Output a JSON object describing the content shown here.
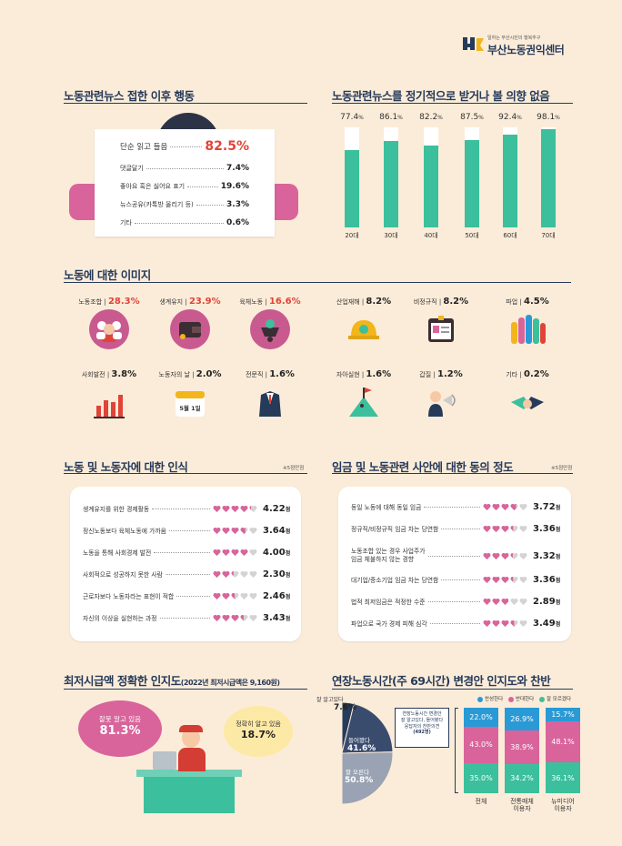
{
  "logo": {
    "tagline": "일하는 부산시민의 행복추구",
    "name": "부산노동권익센터",
    "mark": "부"
  },
  "s1": {
    "title": "노동관련뉴스 접한 이후 행동",
    "rows": [
      {
        "label": "단순 읽고 들음",
        "value": "82.5%"
      },
      {
        "label": "댓글달기",
        "value": "7.4%"
      },
      {
        "label": "좋아요 혹은 싫어요 표기",
        "value": "19.6%"
      },
      {
        "label": "뉴스공유(카톡방 올리기 등)",
        "value": "3.3%"
      },
      {
        "label": "기타",
        "value": "0.6%"
      }
    ]
  },
  "s2": {
    "title": "노동관련뉴스를 정기적으로 받거나 볼 의향 없음",
    "unit": "%",
    "bars": [
      {
        "cat": "20대",
        "num": "77.4",
        "v": 77.4
      },
      {
        "cat": "30대",
        "num": "86.1",
        "v": 86.1
      },
      {
        "cat": "40대",
        "num": "82.2",
        "v": 82.2
      },
      {
        "cat": "50대",
        "num": "87.5",
        "v": 87.5
      },
      {
        "cat": "60대",
        "num": "92.4",
        "v": 92.4
      },
      {
        "cat": "70대",
        "num": "98.1",
        "v": 98.1
      }
    ]
  },
  "s3": {
    "title": "노동에 대한 이미지",
    "items": [
      {
        "label": "노동조합",
        "value": "28.3%",
        "icon": "union-people-icon"
      },
      {
        "label": "생계유지",
        "value": "23.9%",
        "icon": "wallet-icon"
      },
      {
        "label": "육체노동",
        "value": "16.6%",
        "icon": "wheelbarrow-icon"
      },
      {
        "label": "산업재해",
        "value": "8.2%",
        "icon": "safety-helmet-icon"
      },
      {
        "label": "비정규직",
        "value": "8.2%",
        "icon": "id-card-icon"
      },
      {
        "label": "파업",
        "value": "4.5%",
        "icon": "raised-fists-icon"
      },
      {
        "label": "사회발전",
        "value": "3.8%",
        "icon": "growth-bars-icon"
      },
      {
        "label": "노동자의 날",
        "value": "2.0%",
        "icon": "calendar-icon"
      },
      {
        "label": "전문직",
        "value": "1.6%",
        "icon": "suit-icon"
      },
      {
        "label": "자아실현",
        "value": "1.6%",
        "icon": "mountain-flag-icon"
      },
      {
        "label": "갑질",
        "value": "1.2%",
        "icon": "megaphone-boss-icon"
      },
      {
        "label": "기타",
        "value": "0.2%",
        "icon": "handshake-icon"
      }
    ],
    "calendar_text": "5월 1일"
  },
  "s4": {
    "title": "노동 및 노동자에 대한 인식",
    "note": "※5점만점",
    "unit": "점",
    "rows": [
      {
        "label": "생계유지를 위한 경제활동",
        "num": "4.22",
        "v": 4.22
      },
      {
        "label": "정신노동보다 육체노동에 가까움",
        "num": "3.64",
        "v": 3.64
      },
      {
        "label": "노동을 통해 사회경제 발전",
        "num": "4.00",
        "v": 4.0
      },
      {
        "label": "사회적으로 성공하지 못한 사람",
        "num": "2.30",
        "v": 2.3
      },
      {
        "label": "근로자보다 노동자라는 표현이 적합",
        "num": "2.46",
        "v": 2.46
      },
      {
        "label": "자신의 이상을 실현하는 과정",
        "num": "3.43",
        "v": 3.43
      }
    ]
  },
  "s5": {
    "title": "임금 및 노동관련 사안에 대한 동의 정도",
    "note": "※5점만점",
    "unit": "점",
    "rows": [
      {
        "label": "동일 노동에 대해 동일 임금",
        "num": "3.72",
        "v": 3.72
      },
      {
        "label": "정규직/비정규직 임금 차는 당연함",
        "num": "3.36",
        "v": 3.36
      },
      {
        "label": "노동조합 있는 경우 사업주가",
        "label2": "임금 체불하지 않는 경향",
        "num": "3.32",
        "v": 3.32
      },
      {
        "label": "대기업/중소기업 임금 차는 당연함",
        "num": "3.36",
        "v": 3.36
      },
      {
        "label": "법적 최저임금은 적정한 수준",
        "num": "2.89",
        "v": 2.89
      },
      {
        "label": "파업으로 국가 경제 피해 심각",
        "num": "3.49",
        "v": 3.49
      }
    ]
  },
  "s6": {
    "title": "최저시급액 정확한 인지도",
    "title_sub": "(2022년 최저시급액은 9,160원)",
    "wrong_label": "잘못 알고 있음",
    "wrong_value": "81.3%",
    "right_label": "정확히 알고 있음",
    "right_value": "18.7%"
  },
  "s7": {
    "title": "연장노동시간(주 69시간) 변경안 인지도와 찬반",
    "legend": [
      {
        "label": "찬성한다",
        "color": "#2a9ad6"
      },
      {
        "label": "반대한다",
        "color": "#d9649b"
      },
      {
        "label": "잘 모르겠다",
        "color": "#3cbf9c"
      }
    ],
    "pie": [
      {
        "label": "잘 알고있다",
        "value": "7.6%",
        "v": 7.6
      },
      {
        "label": "들어봤다",
        "value": "41.6%",
        "v": 41.6
      },
      {
        "label": "잘 모른다",
        "value": "50.8%",
        "v": 50.8
      }
    ],
    "callout": [
      "연장노동시간 변경안",
      "잘 알고있다, 들어봤다",
      "응답자의 찬반의견",
      "(492명)"
    ],
    "stacks": [
      {
        "cat": "전체",
        "cat2": "",
        "agree": "22.0%",
        "oppose": "43.0%",
        "unsure": "35.0%",
        "a": 22.0,
        "o": 43.0,
        "u": 35.0
      },
      {
        "cat": "전통매체",
        "cat2": "이용자",
        "agree": "26.9%",
        "oppose": "38.9%",
        "unsure": "34.2%",
        "a": 26.9,
        "o": 38.9,
        "u": 34.2
      },
      {
        "cat": "뉴미디어",
        "cat2": "이용자",
        "agree": "15.7%",
        "oppose": "48.1%",
        "unsure": "36.1%",
        "a": 15.7,
        "o": 48.1,
        "u": 36.1
      }
    ]
  }
}
